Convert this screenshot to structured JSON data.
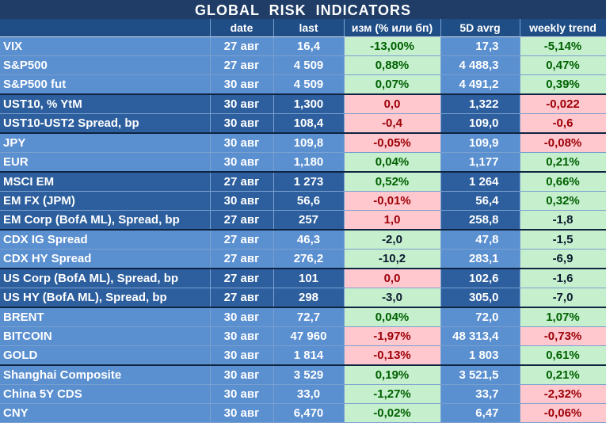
{
  "title": "GLOBAL   RISK   INDICATORS",
  "headers": [
    "",
    "date",
    "last",
    "изм (% или бп)",
    "5D avrg",
    "weekly trend"
  ],
  "rows": [
    {
      "name": "VIX",
      "date": "27 авг",
      "last": "16,4",
      "chg": "-13,00%",
      "avg": "17,3",
      "wk": "-5,14%",
      "chg_state": "pos",
      "wk_state": "pos",
      "shade": "light",
      "group_start": false
    },
    {
      "name": "S&P500",
      "date": "27 авг",
      "last": "4 509",
      "chg": "0,88%",
      "avg": "4 488,3",
      "wk": "0,47%",
      "chg_state": "pos",
      "wk_state": "pos",
      "shade": "light",
      "group_start": false
    },
    {
      "name": "S&P500 fut",
      "date": "30 авг",
      "last": "4 509",
      "chg": "0,07%",
      "avg": "4 491,2",
      "wk": "0,39%",
      "chg_state": "pos",
      "wk_state": "pos",
      "shade": "light",
      "group_start": false
    },
    {
      "name": "UST10, % YtM",
      "date": "30 авг",
      "last": "1,300",
      "chg": "0,0",
      "avg": "1,322",
      "wk": "-0,022",
      "chg_state": "neg",
      "wk_state": "neg",
      "shade": "dark",
      "group_start": true
    },
    {
      "name": "UST10-UST2 Spread, bp",
      "date": "30 авг",
      "last": "108,4",
      "chg": "-0,4",
      "avg": "109,0",
      "wk": "-0,6",
      "chg_state": "neg",
      "wk_state": "neg",
      "shade": "dark",
      "group_start": false
    },
    {
      "name": "JPY",
      "date": "30 авг",
      "last": "109,8",
      "chg": "-0,05%",
      "avg": "109,9",
      "wk": "-0,08%",
      "chg_state": "neg",
      "wk_state": "neg",
      "shade": "light",
      "group_start": true
    },
    {
      "name": "EUR",
      "date": "30 авг",
      "last": "1,180",
      "chg": "0,04%",
      "avg": "1,177",
      "wk": "0,21%",
      "chg_state": "pos",
      "wk_state": "pos",
      "shade": "light",
      "group_start": false
    },
    {
      "name": "MSCI EM",
      "date": "27 авг",
      "last": "1 273",
      "chg": "0,52%",
      "avg": "1 264",
      "wk": "0,66%",
      "chg_state": "pos",
      "wk_state": "pos",
      "shade": "dark",
      "group_start": true
    },
    {
      "name": "EM FX (JPM)",
      "date": "30 авг",
      "last": "56,6",
      "chg": "-0,01%",
      "avg": "56,4",
      "wk": "0,32%",
      "chg_state": "neg",
      "wk_state": "pos",
      "shade": "dark",
      "group_start": false
    },
    {
      "name": "EM Corp (BofA ML), Spread, bp",
      "date": "27 авг",
      "last": "257",
      "chg": "1,0",
      "avg": "258,8",
      "wk": "-1,8",
      "chg_state": "neg",
      "wk_state": "neu",
      "shade": "dark",
      "group_start": false
    },
    {
      "name": "CDX IG Spread",
      "date": "27 авг",
      "last": "46,3",
      "chg": "-2,0",
      "avg": "47,8",
      "wk": "-1,5",
      "chg_state": "neu",
      "wk_state": "neu",
      "shade": "light",
      "group_start": true
    },
    {
      "name": "CDX HY Spread",
      "date": "27 авг",
      "last": "276,2",
      "chg": "-10,2",
      "avg": "283,1",
      "wk": "-6,9",
      "chg_state": "neu",
      "wk_state": "neu",
      "shade": "light",
      "group_start": false
    },
    {
      "name": "US Corp (BofA ML), Spread, bp",
      "date": "27 авг",
      "last": "101",
      "chg": "0,0",
      "avg": "102,6",
      "wk": "-1,6",
      "chg_state": "neg",
      "wk_state": "neu",
      "shade": "dark",
      "group_start": true
    },
    {
      "name": "US HY (BofA ML), Spread, bp",
      "date": "27 авг",
      "last": "298",
      "chg": "-3,0",
      "avg": "305,0",
      "wk": "-7,0",
      "chg_state": "neu",
      "wk_state": "neu",
      "shade": "dark",
      "group_start": false
    },
    {
      "name": "BRENT",
      "date": "30 авг",
      "last": "72,7",
      "chg": "0,04%",
      "avg": "72,0",
      "wk": "1,07%",
      "chg_state": "pos",
      "wk_state": "pos",
      "shade": "light",
      "group_start": true
    },
    {
      "name": "BITCOIN",
      "date": "30 авг",
      "last": "47 960",
      "chg": "-1,97%",
      "avg": "48 313,4",
      "wk": "-0,73%",
      "chg_state": "neg",
      "wk_state": "neg",
      "shade": "light",
      "group_start": false
    },
    {
      "name": "GOLD",
      "date": "30 авг",
      "last": "1 814",
      "chg": "-0,13%",
      "avg": "1 803",
      "wk": "0,61%",
      "chg_state": "neg",
      "wk_state": "pos",
      "shade": "light",
      "group_start": false
    },
    {
      "name": "Shanghai Composite",
      "date": "30 авг",
      "last": "3 529",
      "chg": "0,19%",
      "avg": "3 521,5",
      "wk": "0,21%",
      "chg_state": "pos",
      "wk_state": "pos",
      "shade": "light",
      "group_start": true
    },
    {
      "name": "China 5Y CDS",
      "date": "30 авг",
      "last": "33,0",
      "chg": "-1,27%",
      "avg": "33,7",
      "wk": "-2,32%",
      "chg_state": "pos",
      "wk_state": "neg",
      "shade": "light",
      "group_start": false
    },
    {
      "name": "CNY",
      "date": "30 авг",
      "last": "6,470",
      "chg": "-0,02%",
      "avg": "6,47",
      "wk": "-0,06%",
      "chg_state": "pos",
      "wk_state": "neg",
      "shade": "light",
      "group_start": false
    }
  ]
}
